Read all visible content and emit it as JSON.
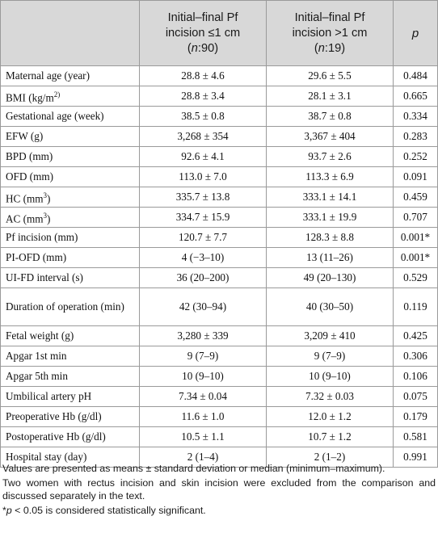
{
  "header": {
    "col1": "",
    "group1": {
      "line1": "Initial–final Pf",
      "line2": "incision ≤1 cm",
      "n_open": "(",
      "n_italic": "n",
      "n_rest": ":90)"
    },
    "group2": {
      "line1": "Initial–final Pf",
      "line2": "incision >1 cm",
      "n_open": "(",
      "n_italic": "n",
      "n_rest": ":19)"
    },
    "p": "p"
  },
  "rows": [
    {
      "label": "Maternal age (year)",
      "a": "28.8 ± 4.6",
      "b": "29.6 ± 5.5",
      "p": "0.484"
    },
    {
      "label": "BMI (kg/m",
      "label_sup": "2)",
      "a": "28.8 ± 3.4",
      "b": "28.1 ± 3.1",
      "p": "0.665"
    },
    {
      "label": "Gestational age (week)",
      "a": "38.5 ± 0.8",
      "b": "38.7 ± 0.8",
      "p": "0.334"
    },
    {
      "label": "EFW (g)",
      "a": "3,268 ± 354",
      "b": "3,367 ± 404",
      "p": "0.283"
    },
    {
      "label": "BPD (mm)",
      "a": "92.6 ± 4.1",
      "b": "93.7 ± 2.6",
      "p": "0.252"
    },
    {
      "label": "OFD (mm)",
      "a": "113.0 ± 7.0",
      "b": "113.3 ± 6.9",
      "p": "0.091"
    },
    {
      "label": "HC (mm",
      "label_sup": "3",
      "label_tail": ")",
      "a": "335.7 ± 13.8",
      "b": "333.1 ± 14.1",
      "p": "0.459"
    },
    {
      "label": "AC (mm",
      "label_sup": "3",
      "label_tail": ")",
      "a": "334.7 ± 15.9",
      "b": "333.1 ± 19.9",
      "p": "0.707"
    },
    {
      "label": "Pf incision (mm)",
      "a": "120.7 ± 7.7",
      "b": "128.3 ± 8.8",
      "p": "0.001*"
    },
    {
      "label": "PI-OFD (mm)",
      "a": "4 (−3–10)",
      "b": "13 (11–26)",
      "p": "0.001*"
    },
    {
      "label": "UI-FD interval (s)",
      "a": "36 (20–200)",
      "b": "49 (20–130)",
      "p": "0.529"
    },
    {
      "label": "Duration of operation (min)",
      "a": "42 (30–94)",
      "b": "40 (30–50)",
      "p": "0.119",
      "tall": true
    },
    {
      "label": "Fetal weight (g)",
      "a": "3,280 ± 339",
      "b": "3,209 ± 410",
      "p": "0.425"
    },
    {
      "label": "Apgar 1st min",
      "a": "9 (7–9)",
      "b": "9 (7–9)",
      "p": "0.306"
    },
    {
      "label": "Apgar 5th min",
      "a": "10 (9–10)",
      "b": "10 (9–10)",
      "p": "0.106"
    },
    {
      "label": "Umbilical artery pH",
      "a": "7.34 ± 0.04",
      "b": "7.32 ± 0.03",
      "p": "0.075"
    },
    {
      "label": "Preoperative Hb (g/dl)",
      "a": "11.6 ± 1.0",
      "b": "12.0 ± 1.2",
      "p": "0.179"
    },
    {
      "label": "Postoperative Hb (g/dl)",
      "a": "10.5 ± 1.1",
      "b": "10.7 ± 1.2",
      "p": "0.581"
    },
    {
      "label": "Hospital stay (day)",
      "a": "2 (1–4)",
      "b": "2 (1–2)",
      "p": "0.991"
    }
  ],
  "notes": {
    "n1": "Values are presented as means ± standard deviation or median (minimum–maximum).",
    "n2": "Two women with rectus incision and skin incision were excluded from the comparison and discussed separately in the text.",
    "n3_star": "*",
    "n3_p": "p",
    "n3_rest": " < 0.05 is considered statistically significant."
  }
}
